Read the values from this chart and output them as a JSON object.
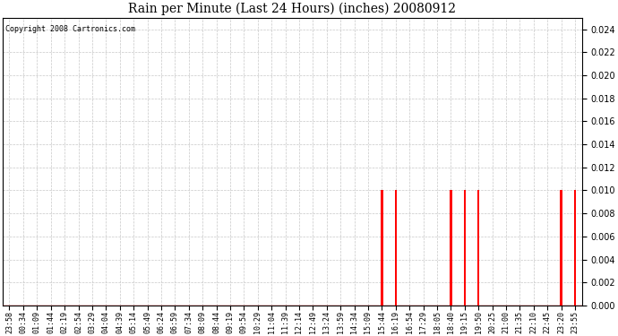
{
  "title": "Rain per Minute (Last 24 Hours) (inches) 20080912",
  "copyright_text": "Copyright 2008 Cartronics.com",
  "bar_color": "#ff0000",
  "background_color": "#ffffff",
  "grid_color": "#c8c8c8",
  "ylim": [
    0.0,
    0.025
  ],
  "yticks": [
    0.0,
    0.002,
    0.004,
    0.006,
    0.008,
    0.01,
    0.012,
    0.014,
    0.016,
    0.018,
    0.02,
    0.022,
    0.024
  ],
  "x_labels": [
    "23:58",
    "00:34",
    "01:09",
    "01:44",
    "02:19",
    "02:54",
    "03:29",
    "04:04",
    "04:39",
    "05:14",
    "05:49",
    "06:24",
    "06:59",
    "07:34",
    "08:09",
    "08:44",
    "09:19",
    "09:54",
    "10:29",
    "11:04",
    "11:39",
    "12:14",
    "12:49",
    "13:24",
    "13:59",
    "14:34",
    "15:09",
    "15:44",
    "16:19",
    "16:54",
    "17:29",
    "18:05",
    "18:40",
    "19:15",
    "19:50",
    "20:25",
    "21:00",
    "21:35",
    "22:10",
    "22:45",
    "23:20",
    "23:55"
  ],
  "data": [
    0,
    0,
    0,
    0,
    0,
    0,
    0,
    0,
    0,
    0,
    0,
    0,
    0,
    0,
    0,
    0,
    0,
    0,
    0,
    0,
    0,
    0,
    0,
    0,
    0,
    0,
    0,
    0.01,
    0.01,
    0,
    0,
    0,
    0.01,
    0.01,
    0.01,
    0,
    0,
    0,
    0,
    0,
    0.01,
    0.01
  ],
  "n_points": 42,
  "figsize": [
    6.9,
    3.75
  ],
  "dpi": 100,
  "title_fontsize": 10,
  "tick_fontsize": 6,
  "ytick_fontsize": 7,
  "copyright_fontsize": 6,
  "bar_width": 0.15
}
